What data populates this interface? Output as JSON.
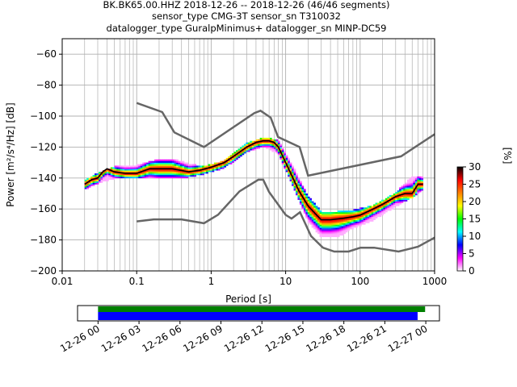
{
  "title_lines": [
    "BK.BK65.00.HHZ   2018-12-26 -- 2018-12-26  (46/46 segments)",
    "sensor_type CMG-3T sensor_sn T310032",
    "datalogger_type GuralpMinimus+ datalogger_sn MINP-DC59"
  ],
  "chart_data": {
    "type": "heatmap",
    "title": "BK.BK65.00.HHZ   2018-12-26 -- 2018-12-26  (46/46 segments)",
    "xlabel": "Period [s]",
    "ylabel": "Power [m²/s⁴/Hz] [dB]",
    "x_scale": "log",
    "xlim": [
      0.01,
      1000
    ],
    "ylim": [
      -200,
      -50
    ],
    "x_ticks": [
      "0.01",
      "0.1",
      "1",
      "10",
      "100",
      "1000"
    ],
    "y_ticks": [
      "−60",
      "−80",
      "−100",
      "−120",
      "−140",
      "−160",
      "−180",
      "−200"
    ],
    "grid": true,
    "colorbar": {
      "label": "[%]",
      "range": [
        0,
        30
      ],
      "ticks": [
        "0",
        "5",
        "10",
        "15",
        "20",
        "25",
        "30"
      ],
      "colors": [
        "#ffffff",
        "#ff00ff",
        "#0000ff",
        "#00ffff",
        "#00ff00",
        "#ffff00",
        "#ff8000",
        "#ff0000",
        "#000000"
      ]
    },
    "nhnm": {
      "name": "NHNM",
      "periods": [
        0.1,
        0.22,
        0.32,
        0.8,
        3.8,
        4.6,
        6.3,
        7.9,
        15.4,
        20,
        354.8,
        10000
      ],
      "values": [
        -91.5,
        -97.4,
        -110.5,
        -120,
        -98,
        -96.5,
        -101,
        -113.5,
        -120,
        -138.5,
        -126,
        -80
      ]
    },
    "nlnm": {
      "name": "NLNM",
      "periods": [
        0.1,
        0.17,
        0.4,
        0.8,
        1.24,
        2.4,
        4.3,
        5,
        6,
        10,
        12,
        15.6,
        21.9,
        31.6,
        45,
        70,
        101,
        154,
        328,
        600,
        1000
      ],
      "values": [
        -168,
        -166.7,
        -166.7,
        -169.2,
        -163.7,
        -148.6,
        -141.1,
        -141.1,
        -149,
        -163.8,
        -166.2,
        -162.1,
        -177.5,
        -185,
        -187.5,
        -187.5,
        -185,
        -185,
        -187.5,
        -184.4,
        -178.5
      ]
    },
    "mode_curve": {
      "periods": [
        0.02,
        0.025,
        0.03,
        0.035,
        0.04,
        0.05,
        0.07,
        0.1,
        0.15,
        0.2,
        0.3,
        0.5,
        0.7,
        1,
        1.5,
        2,
        3,
        4,
        5,
        6,
        7,
        8,
        10,
        12,
        15,
        20,
        25,
        30,
        40,
        60,
        80,
        100,
        150,
        200,
        300,
        400,
        500,
        600,
        700
      ],
      "values": [
        -144,
        -141,
        -140,
        -136,
        -134,
        -136,
        -137,
        -137,
        -134,
        -134,
        -134,
        -136,
        -135,
        -133,
        -130,
        -126,
        -120,
        -117,
        -116,
        -116,
        -117,
        -120,
        -130,
        -138,
        -148,
        -158,
        -163,
        -167,
        -167,
        -166,
        -165,
        -164,
        -160,
        -157,
        -152,
        -150,
        -150,
        -144,
        -144
      ]
    },
    "band": {
      "periods": [
        0.02,
        0.03,
        0.05,
        0.1,
        0.2,
        0.3,
        0.5,
        0.8,
        1.5,
        3,
        5,
        8,
        12,
        20,
        30,
        50,
        80,
        150,
        300,
        500,
        700
      ],
      "upper": [
        -142,
        -137,
        -133,
        -132,
        -128,
        -128,
        -131,
        -133,
        -129,
        -118,
        -114,
        -116,
        -131,
        -152,
        -162,
        -162,
        -161,
        -158,
        -150,
        -139,
        -139
      ],
      "lower": [
        -147,
        -143,
        -140,
        -140,
        -140,
        -140,
        -139,
        -137,
        -133,
        -123,
        -119,
        -124,
        -143,
        -168,
        -178,
        -178,
        -172,
        -167,
        -158,
        -152,
        -147
      ]
    }
  },
  "time_axis": {
    "labels": [
      "12-26 00",
      "12-26 03",
      "12-26 06",
      "12-26 09",
      "12-26 12",
      "12-26 15",
      "12-26 18",
      "12-26 21",
      "12-27 00"
    ],
    "range_hours": [
      -1.5,
      25
    ],
    "data_coverage_hours": [
      0,
      23.95
    ],
    "psd_coverage_hours": [
      0,
      23.4
    ],
    "data_color": "#008000",
    "psd_color": "#0000ff"
  },
  "colors": {
    "noise_model": "#666666",
    "mode": "#000000",
    "grid": "#b0b0b0"
  }
}
